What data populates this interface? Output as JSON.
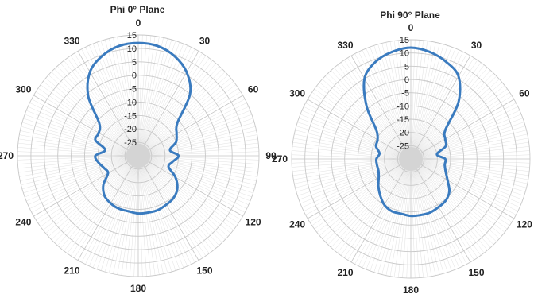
{
  "chart_data": [
    {
      "type": "polar-line",
      "title": "Phi 0° Plane",
      "angle_tick_labels": [
        "0",
        "30",
        "60",
        "90",
        "120",
        "150",
        "180",
        "210",
        "240",
        "270",
        "300",
        "330"
      ],
      "radial_tick_labels": [
        "15",
        "10",
        "5",
        "0",
        "-5",
        "-10",
        "-15",
        "-20",
        "-25"
      ],
      "r_range": [
        -30,
        15
      ],
      "angle_direction": "clockwise",
      "zero_angle_position": "top",
      "grid": true,
      "line_color": "#3a7bbf",
      "points": {
        "angle": [
          0,
          10,
          20,
          30,
          40,
          50,
          60,
          70,
          80,
          90,
          100,
          110,
          120,
          130,
          140,
          150,
          160,
          170,
          180,
          190,
          200,
          210,
          220,
          230,
          240,
          250,
          260,
          270,
          280,
          290,
          300,
          310,
          320,
          330,
          340,
          350
        ],
        "value": [
          12,
          11.5,
          9.5,
          6,
          0,
          -11,
          -13.5,
          -15,
          -18,
          -15,
          -17,
          -18,
          -14,
          -11,
          -9.5,
          -9,
          -8.5,
          -8.5,
          -8.5,
          -9,
          -9,
          -9.5,
          -10.5,
          -13,
          -17,
          -16.5,
          -15,
          -14,
          -17.5,
          -13,
          -13,
          -11,
          -1,
          6,
          9.5,
          11.5
        ]
      }
    },
    {
      "type": "polar-line",
      "title": "Phi 90° Plane",
      "angle_tick_labels": [
        "0",
        "30",
        "60",
        "90",
        "120",
        "150",
        "180",
        "210",
        "240",
        "270",
        "300",
        "330"
      ],
      "radial_tick_labels": [
        "15",
        "10",
        "5",
        "0",
        "-5",
        "-10",
        "-15",
        "-20",
        "-25"
      ],
      "r_range": [
        -30,
        15
      ],
      "angle_direction": "clockwise",
      "zero_angle_position": "top",
      "grid": true,
      "line_color": "#3a7bbf",
      "points": {
        "angle": [
          0,
          10,
          20,
          30,
          40,
          50,
          60,
          70,
          80,
          90,
          100,
          110,
          120,
          130,
          140,
          150,
          160,
          170,
          180,
          190,
          200,
          210,
          220,
          230,
          240,
          250,
          260,
          270,
          280,
          290,
          300,
          310,
          320,
          330,
          340,
          350
        ],
        "value": [
          12,
          11,
          9,
          6,
          -2,
          -13,
          -15,
          -16,
          -20,
          -17,
          -17,
          -16,
          -14,
          -11,
          -9.5,
          -9,
          -8.5,
          -8.5,
          -8.5,
          -9,
          -9,
          -10,
          -12,
          -14,
          -16,
          -17,
          -17,
          -17,
          -18,
          -16,
          -15.5,
          -13,
          -4,
          5,
          9,
          11
        ]
      }
    }
  ]
}
